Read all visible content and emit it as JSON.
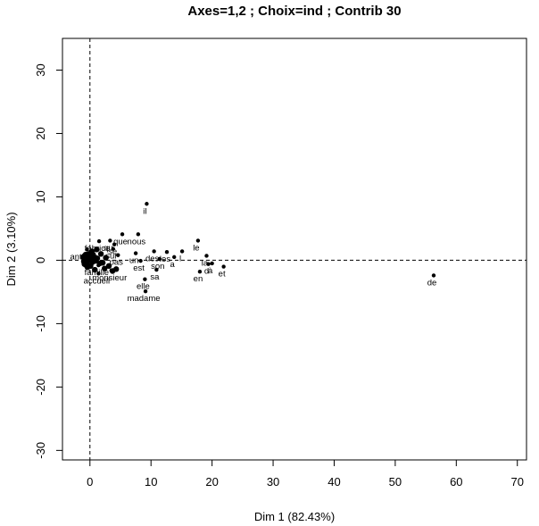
{
  "chart_data": {
    "type": "scatter",
    "title": "Axes=1,2 ; Choix=ind ; Contrib 30",
    "xlabel": "Dim 1 (82.43%)",
    "ylabel": "Dim 2 (3.10%)",
    "xlim": [
      -4.5,
      71.5
    ],
    "ylim": [
      -31.5,
      35
    ],
    "xticks": [
      "0",
      "10",
      "20",
      "30",
      "40",
      "50",
      "60",
      "70"
    ],
    "yticks": [
      "-30",
      "-20",
      "-10",
      "0",
      "10",
      "20",
      "30"
    ],
    "reference_lines": {
      "x": 0,
      "y": 0,
      "style": "dashed"
    },
    "labeled_points": [
      {
        "label": "il",
        "x": 9.3,
        "y": 8.9
      },
      {
        "label": "nous",
        "x": 7.9,
        "y": 4.1
      },
      {
        "label": "que",
        "x": 5.3,
        "y": 4.1
      },
      {
        "label": "qu",
        "x": 3.3,
        "y": 3.1
      },
      {
        "label": "fabrice",
        "x": 1.5,
        "y": 3.0
      },
      {
        "label": "le",
        "x": 17.7,
        "y": 3.1
      },
      {
        "label": "se",
        "x": 4.0,
        "y": 2.5
      },
      {
        "label": "des",
        "x": 10.5,
        "y": 1.4
      },
      {
        "label": "les",
        "x": 12.6,
        "y": 1.3
      },
      {
        "label": "un",
        "x": 7.5,
        "y": 1.1
      },
      {
        "label": "sur",
        "x": 3.8,
        "y": 1.8
      },
      {
        "label": "pas",
        "x": 4.6,
        "y": 0.8
      },
      {
        "label": "anthony",
        "x": -0.5,
        "y": 1.7
      },
      {
        "label": "la",
        "x": 19.1,
        "y": 0.7
      },
      {
        "label": "l",
        "x": 15.1,
        "y": 1.4
      },
      {
        "label": "a",
        "x": 13.8,
        "y": 0.5
      },
      {
        "label": "son",
        "x": 11.4,
        "y": 0.2
      },
      {
        "label": "est",
        "x": 8.3,
        "y": -0.1
      },
      {
        "label": "à",
        "x": 20.0,
        "y": -0.5
      },
      {
        "label": "d",
        "x": 19.4,
        "y": -0.6
      },
      {
        "label": "famille",
        "x": 1.4,
        "y": -0.8
      },
      {
        "label": "et",
        "x": 21.9,
        "y": -1.0
      },
      {
        "label": "monsieur",
        "x": 3.5,
        "y": -1.6
      },
      {
        "label": "sa",
        "x": 10.9,
        "y": -1.5
      },
      {
        "label": "en",
        "x": 18.0,
        "y": -1.8
      },
      {
        "label": "accueil",
        "x": 1.4,
        "y": -2.1
      },
      {
        "label": "elle",
        "x": 9.0,
        "y": -3.0
      },
      {
        "label": "madame",
        "x": 9.1,
        "y": -4.9
      },
      {
        "label": "de",
        "x": 56.3,
        "y": -2.4
      }
    ],
    "unlabeled_points": [
      {
        "x": -0.8,
        "y": 0.3
      },
      {
        "x": -0.5,
        "y": -0.4
      },
      {
        "x": -0.9,
        "y": 0.0
      },
      {
        "x": -0.3,
        "y": 0.6
      },
      {
        "x": -0.6,
        "y": -0.8
      },
      {
        "x": 0.2,
        "y": 0.2
      },
      {
        "x": -1.0,
        "y": -0.2
      },
      {
        "x": 0.4,
        "y": -0.3
      },
      {
        "x": -0.2,
        "y": 1.0
      },
      {
        "x": 0.7,
        "y": 0.5
      },
      {
        "x": -0.7,
        "y": 0.9
      },
      {
        "x": 0.1,
        "y": -0.9
      },
      {
        "x": -1.1,
        "y": 0.5
      },
      {
        "x": 0.9,
        "y": -0.1
      },
      {
        "x": -0.4,
        "y": -1.1
      },
      {
        "x": 1.2,
        "y": 0.3
      },
      {
        "x": -0.1,
        "y": 0.0
      },
      {
        "x": 0.5,
        "y": 0.9
      },
      {
        "x": -0.9,
        "y": -0.6
      },
      {
        "x": 1.6,
        "y": -0.5
      },
      {
        "x": 2.1,
        "y": -0.4
      },
      {
        "x": 2.6,
        "y": 0.4
      },
      {
        "x": 3.1,
        "y": -0.9
      },
      {
        "x": 2.4,
        "y": -1.3
      },
      {
        "x": 0.3,
        "y": 1.4
      },
      {
        "x": 1.8,
        "y": 1.0
      },
      {
        "x": 3.7,
        "y": -1.7
      },
      {
        "x": 4.3,
        "y": -1.4
      },
      {
        "x": 0.8,
        "y": -1.5
      },
      {
        "x": 1.1,
        "y": 1.7
      }
    ],
    "grid": false,
    "legend": "none"
  }
}
